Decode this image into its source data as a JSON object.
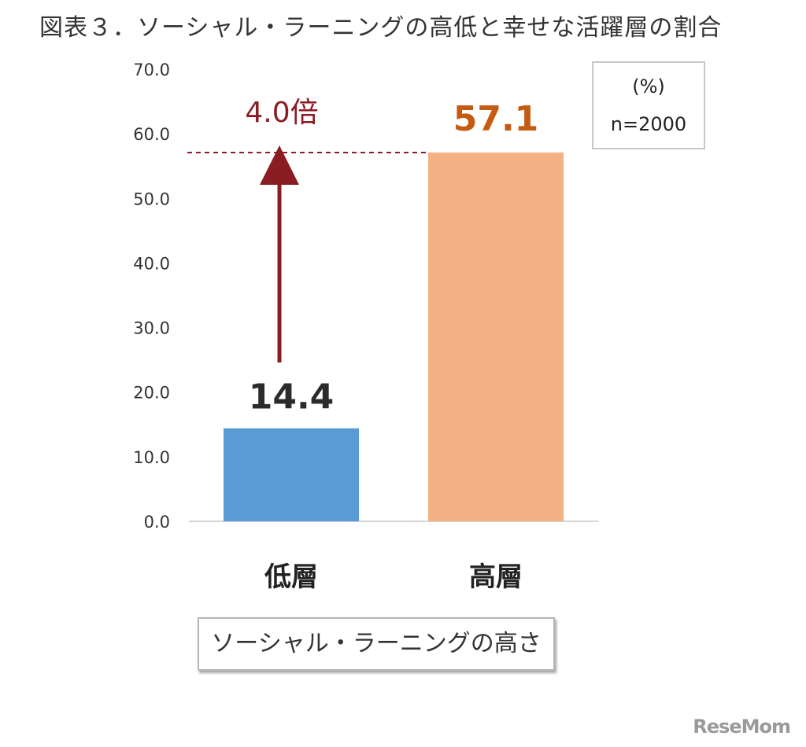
{
  "header": {
    "title": "図表３．ソーシャル・ラーニングの高低と幸せな活躍層の割合"
  },
  "chart_data": {
    "type": "bar",
    "categories": [
      "低層",
      "高層"
    ],
    "values": [
      14.4,
      57.1
    ],
    "value_labels": [
      "14.4",
      "57.1"
    ],
    "colors": [
      "#5b9bd5",
      "#f4b183"
    ],
    "label_colors": [
      "#2b2b2b",
      "#c55a11"
    ],
    "ylim": [
      0,
      70
    ],
    "yticks": [
      "0.0",
      "10.0",
      "20.0",
      "30.0",
      "40.0",
      "50.0",
      "60.0",
      "70.0"
    ],
    "xlabel": "ソーシャル・ラーニングの高さ",
    "annotation": {
      "text": "4.0倍",
      "from_value": 14.4,
      "to_value": 57.1,
      "color": "#8b1c23"
    },
    "unit": "(%)",
    "sample": "n=2000",
    "grid": false
  },
  "logo": "ReseMom"
}
